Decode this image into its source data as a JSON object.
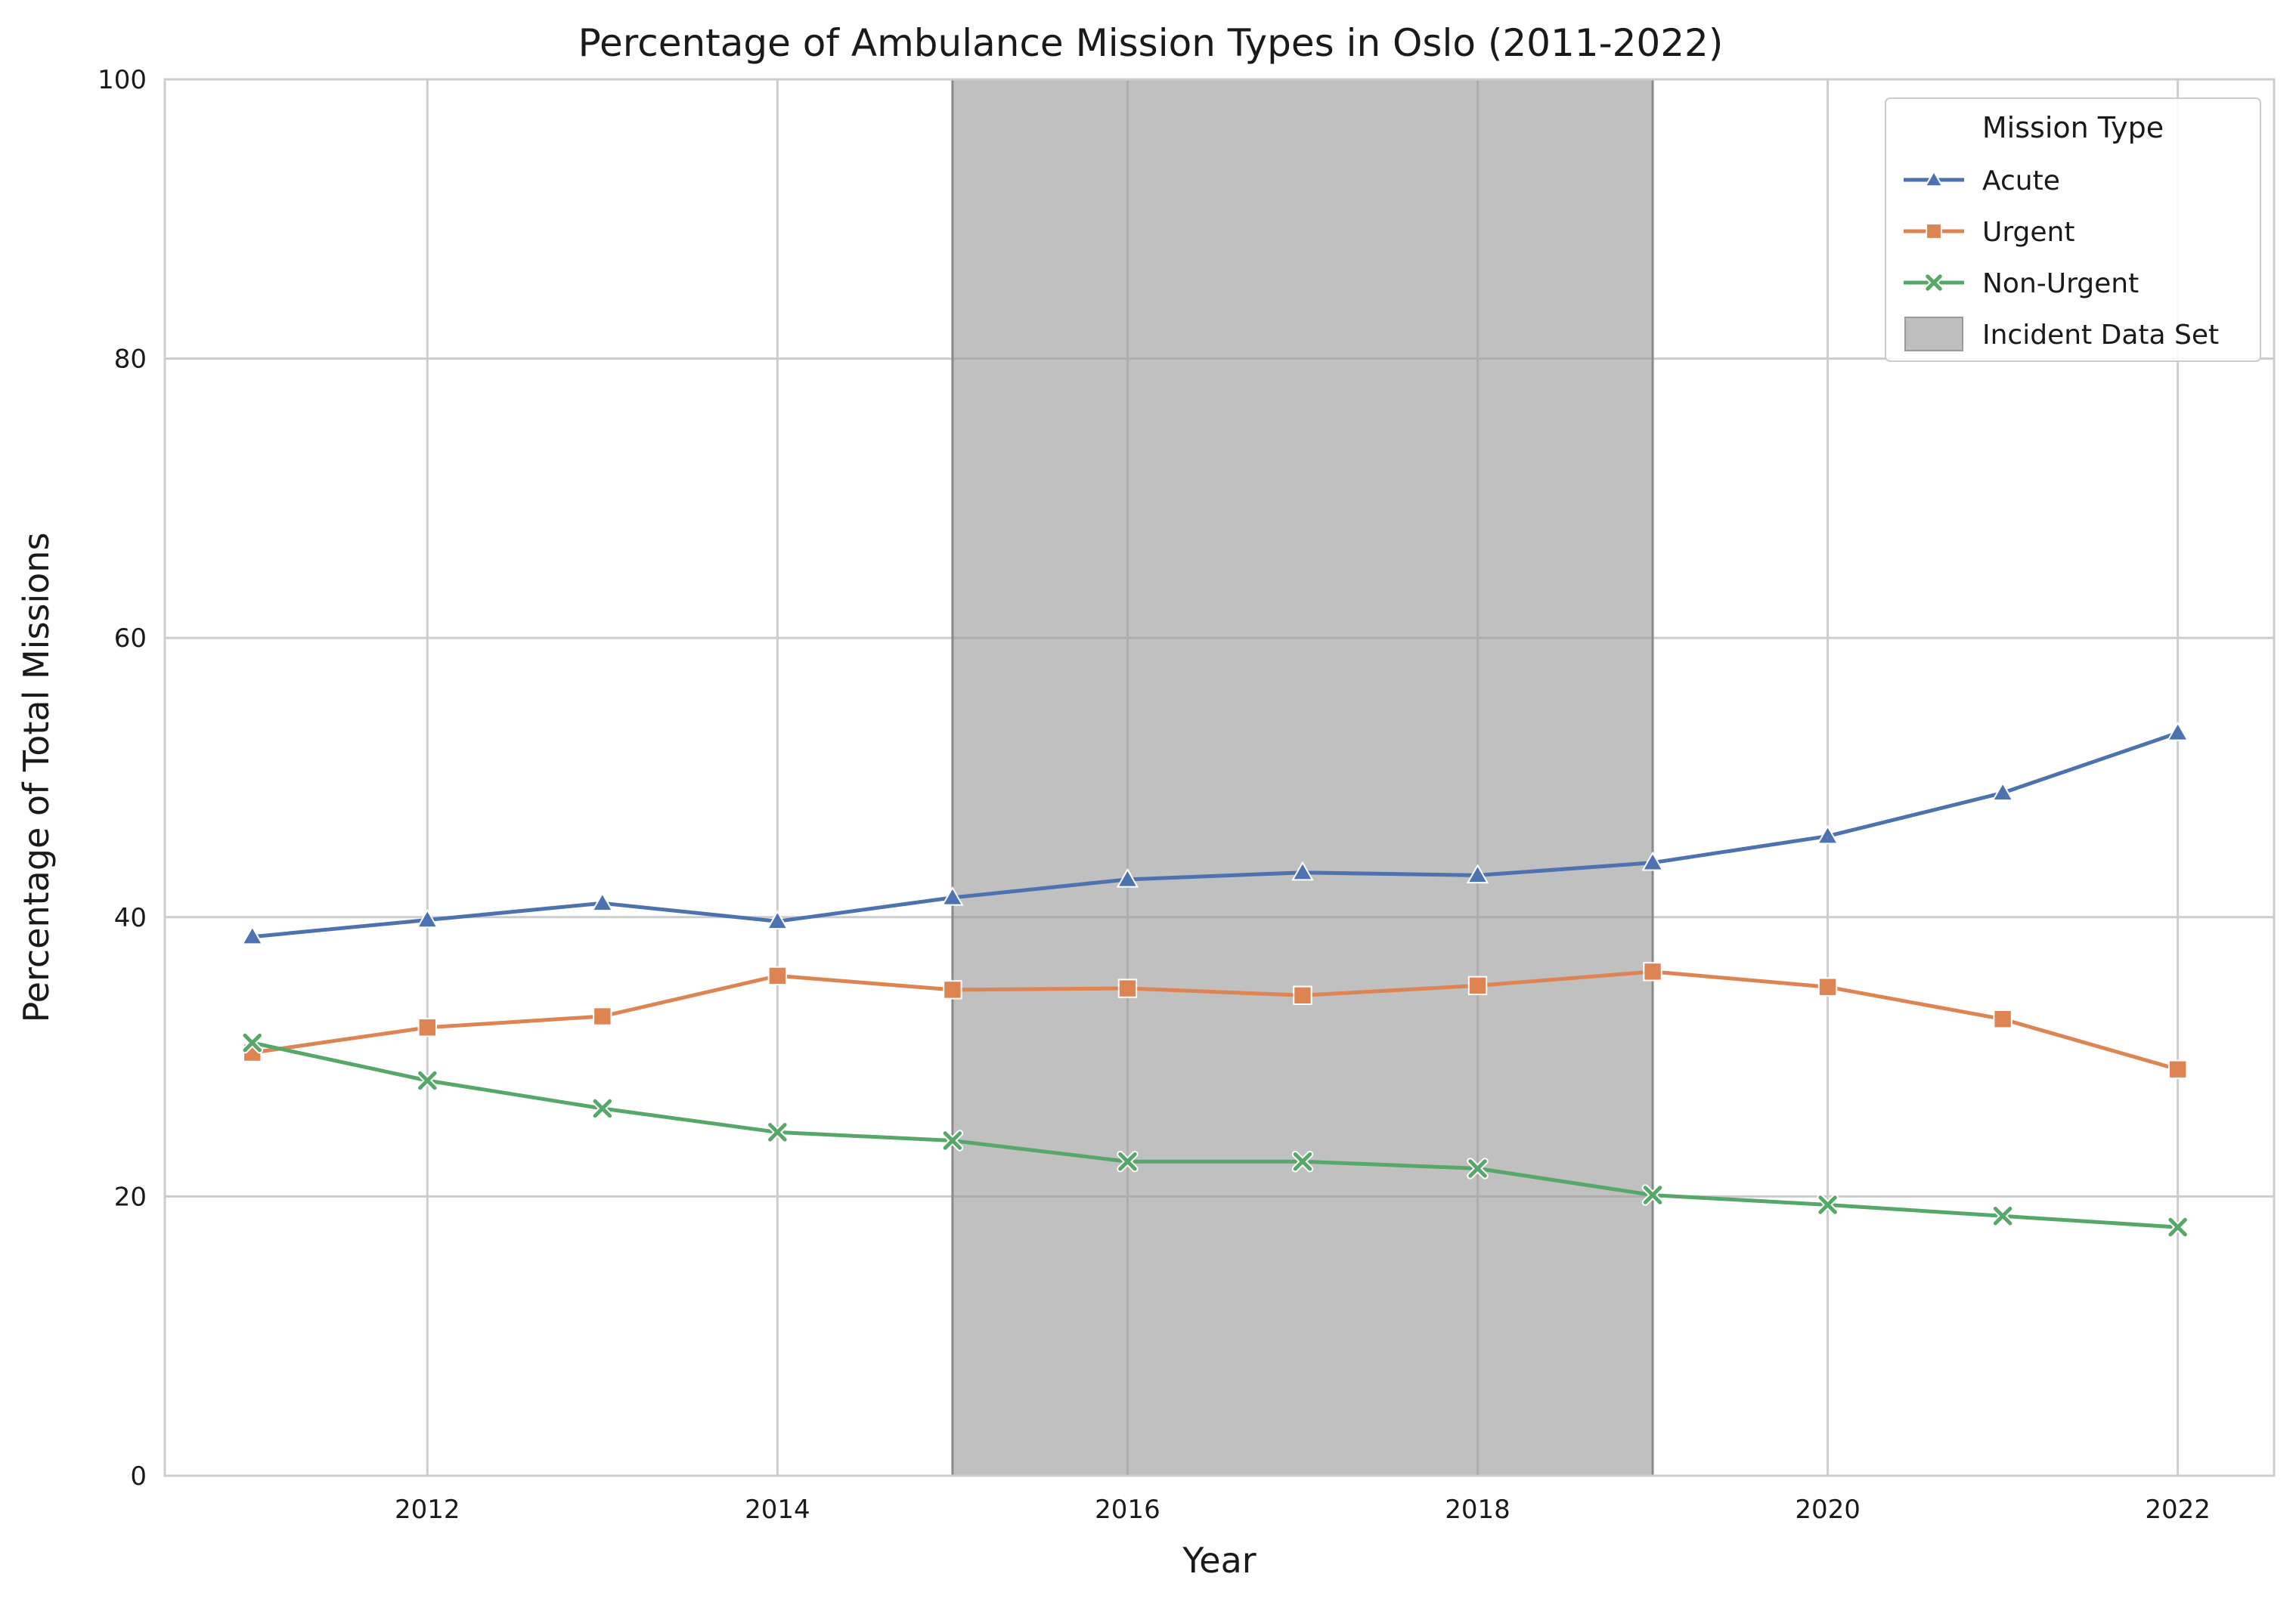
{
  "chart_data": {
    "type": "line",
    "title": "Percentage of Ambulance Mission Types in Oslo (2011-2022)",
    "xlabel": "Year",
    "ylabel": "Percentage of Total Missions",
    "xlim": [
      2010.5,
      2022.55
    ],
    "ylim": [
      0,
      100
    ],
    "x_ticks": [
      2012,
      2014,
      2016,
      2018,
      2020,
      2022
    ],
    "y_ticks": [
      0,
      20,
      40,
      60,
      80,
      100
    ],
    "grid": true,
    "legend_title": "Mission Type",
    "legend_position": "top-right",
    "x": [
      2011,
      2012,
      2013,
      2014,
      2015,
      2016,
      2017,
      2018,
      2019,
      2020,
      2021,
      2022
    ],
    "series": [
      {
        "name": "Acute",
        "color": "#4c72b0",
        "marker": "triangle",
        "values": [
          38.6,
          39.8,
          41.0,
          39.7,
          41.4,
          42.7,
          43.2,
          43.0,
          43.9,
          45.8,
          48.9,
          53.2
        ]
      },
      {
        "name": "Urgent",
        "color": "#dd8452",
        "marker": "square",
        "values": [
          30.3,
          32.1,
          32.9,
          35.8,
          34.8,
          34.9,
          34.4,
          35.1,
          36.1,
          35.0,
          32.7,
          29.1
        ]
      },
      {
        "name": "Non-Urgent",
        "color": "#55a868",
        "marker": "x",
        "values": [
          31.0,
          28.3,
          26.3,
          24.6,
          24.0,
          22.5,
          22.5,
          22.0,
          20.1,
          19.4,
          18.6,
          17.8
        ]
      }
    ],
    "shaded_region": {
      "name": "Incident Data Set",
      "x_start": 2015,
      "x_end": 2019,
      "color": "#bfbfbf"
    }
  }
}
